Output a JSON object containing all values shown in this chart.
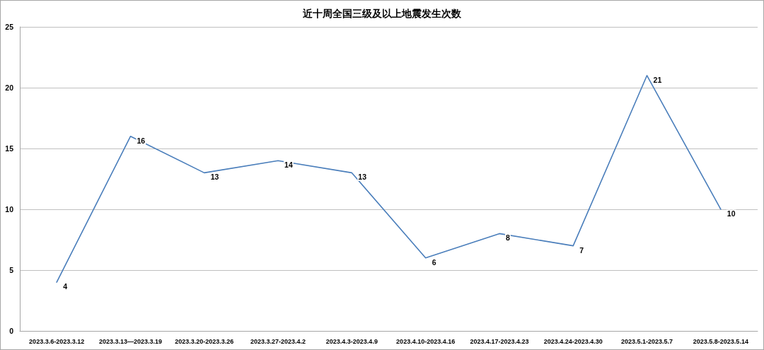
{
  "chart_data": {
    "type": "line",
    "title": "近十周全国三级及以上地震发生次数",
    "categories": [
      "2023.3.6-2023.3.12",
      "2023.3.13—2023.3.19",
      "2023.3.20-2023.3.26",
      "2023.3.27-2023.4.2",
      "2023.4.3-2023.4.9",
      "2023.4.10-2023.4.16",
      "2023.4.17-2023.4.23",
      "2023.4.24-2023.4.30",
      "2023.5.1-2023.5.7",
      "2023.5.8-2023.5.14"
    ],
    "series": [
      {
        "color": "#4a7ebb",
        "values": [
          4,
          16,
          13,
          14,
          13,
          6,
          8,
          7,
          21,
          10
        ]
      }
    ],
    "ylim": [
      0,
      25
    ],
    "yticks": [
      0,
      5,
      10,
      15,
      20,
      25
    ],
    "grid": "y",
    "marker": "none",
    "line_style": "solid",
    "data_labels": true
  }
}
